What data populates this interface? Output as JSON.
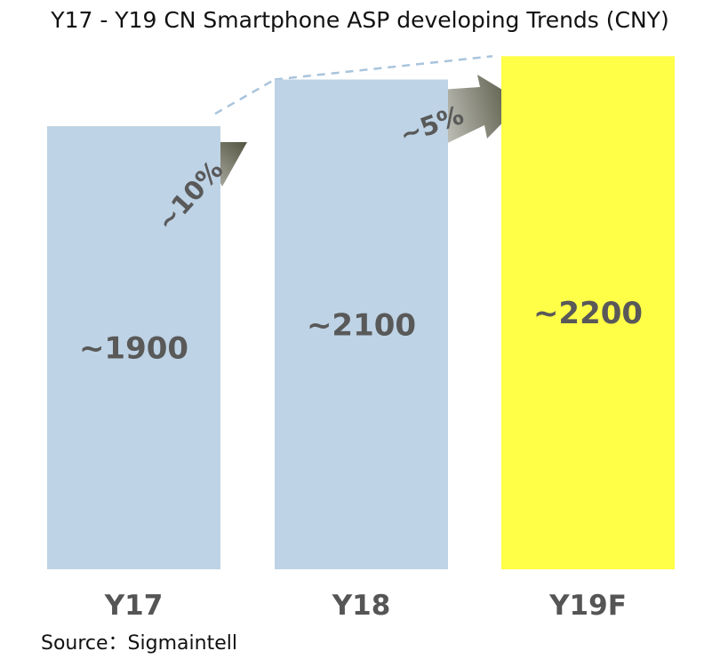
{
  "chart_data": {
    "type": "bar",
    "title": "Y17 - Y19 CN Smartphone ASP developing Trends (CNY)",
    "categories": [
      "Y17",
      "Y18",
      "Y19F"
    ],
    "values": [
      1900,
      2100,
      2200
    ],
    "value_labels": [
      "~1900",
      "~2100",
      "~2200"
    ],
    "growth_labels": [
      "~10%",
      "~5%"
    ],
    "bar_colors": [
      "#bed3e5",
      "#bed3e5",
      "#ffff47"
    ],
    "ylim": [
      0,
      2400
    ],
    "xlabel": "",
    "ylabel": "",
    "grid": false,
    "legend": "none"
  },
  "source": "Source：Sigmaintell",
  "colors": {
    "value_text": "#595959",
    "category_text": "#555555",
    "arrow": "#4a4b36",
    "dash_line": "#a9c4dc"
  }
}
